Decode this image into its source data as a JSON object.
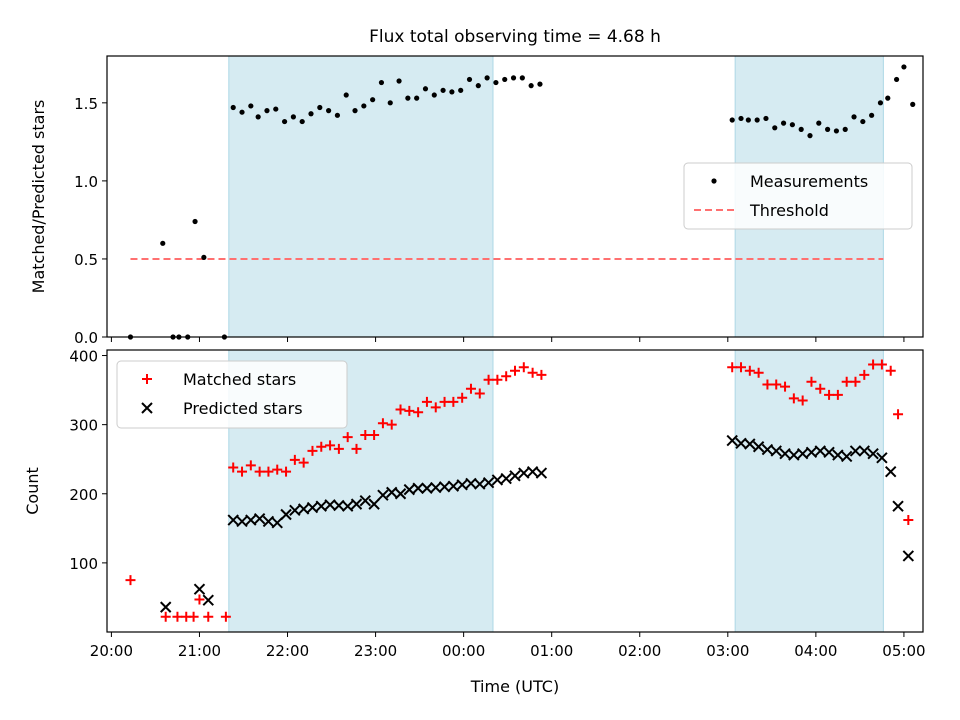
{
  "figure": {
    "title": "Flux total observing time = 4.68 h"
  },
  "chart_data": [
    {
      "type": "scatter",
      "panel": "top",
      "title": "Flux total observing time = 4.68 h",
      "xlabel": "",
      "ylabel": "Matched/Predicted stars",
      "xlim": [
        "19:57",
        "05:13"
      ],
      "ylim": [
        0,
        1.8
      ],
      "yticks": [
        0.0,
        0.5,
        1.0,
        1.5
      ],
      "ytick_labels": [
        "0.0",
        "0.5",
        "1.0",
        "1.5"
      ],
      "xticks": [
        "20:00",
        "21:00",
        "22:00",
        "23:00",
        "00:00",
        "01:00",
        "02:00",
        "03:00",
        "04:00",
        "05:00"
      ],
      "shaded_intervals": [
        {
          "start": "21:20",
          "end": "00:20",
          "color": "#add8e6"
        },
        {
          "start": "03:05",
          "end": "04:46",
          "color": "#add8e6"
        }
      ],
      "threshold": {
        "name": "Threshold",
        "value": 0.5,
        "start": "20:13",
        "end": "04:46",
        "color": "#ff7070"
      },
      "legend": {
        "position": "center-right",
        "entries": [
          "Measurements",
          "Threshold"
        ]
      },
      "series": [
        {
          "name": "Measurements",
          "marker": "dot",
          "color": "#000000",
          "points": [
            {
              "x": "20:13",
              "y": 0.0
            },
            {
              "x": "20:35",
              "y": 0.6
            },
            {
              "x": "20:42",
              "y": 0.0
            },
            {
              "x": "20:46",
              "y": 0.0
            },
            {
              "x": "20:52",
              "y": 0.0
            },
            {
              "x": "20:57",
              "y": 0.74
            },
            {
              "x": "21:03",
              "y": 0.51
            },
            {
              "x": "21:17",
              "y": 0.0
            },
            {
              "x": "21:23",
              "y": 1.47
            },
            {
              "x": "21:29",
              "y": 1.44
            },
            {
              "x": "21:35",
              "y": 1.48
            },
            {
              "x": "21:40",
              "y": 1.41
            },
            {
              "x": "21:46",
              "y": 1.45
            },
            {
              "x": "21:52",
              "y": 1.46
            },
            {
              "x": "21:58",
              "y": 1.38
            },
            {
              "x": "22:04",
              "y": 1.41
            },
            {
              "x": "22:10",
              "y": 1.38
            },
            {
              "x": "22:16",
              "y": 1.43
            },
            {
              "x": "22:22",
              "y": 1.47
            },
            {
              "x": "22:28",
              "y": 1.45
            },
            {
              "x": "22:34",
              "y": 1.42
            },
            {
              "x": "22:40",
              "y": 1.55
            },
            {
              "x": "22:46",
              "y": 1.45
            },
            {
              "x": "22:52",
              "y": 1.48
            },
            {
              "x": "22:58",
              "y": 1.52
            },
            {
              "x": "23:04",
              "y": 1.63
            },
            {
              "x": "23:10",
              "y": 1.5
            },
            {
              "x": "23:16",
              "y": 1.64
            },
            {
              "x": "23:22",
              "y": 1.53
            },
            {
              "x": "23:28",
              "y": 1.53
            },
            {
              "x": "23:34",
              "y": 1.59
            },
            {
              "x": "23:40",
              "y": 1.55
            },
            {
              "x": "23:46",
              "y": 1.58
            },
            {
              "x": "23:52",
              "y": 1.57
            },
            {
              "x": "23:58",
              "y": 1.58
            },
            {
              "x": "00:04",
              "y": 1.65
            },
            {
              "x": "00:10",
              "y": 1.61
            },
            {
              "x": "00:16",
              "y": 1.66
            },
            {
              "x": "00:22",
              "y": 1.63
            },
            {
              "x": "00:28",
              "y": 1.65
            },
            {
              "x": "00:34",
              "y": 1.66
            },
            {
              "x": "00:40",
              "y": 1.66
            },
            {
              "x": "00:46",
              "y": 1.61
            },
            {
              "x": "00:52",
              "y": 1.62
            },
            {
              "x": "03:03",
              "y": 1.39
            },
            {
              "x": "03:09",
              "y": 1.4
            },
            {
              "x": "03:14",
              "y": 1.39
            },
            {
              "x": "03:20",
              "y": 1.39
            },
            {
              "x": "03:26",
              "y": 1.4
            },
            {
              "x": "03:32",
              "y": 1.34
            },
            {
              "x": "03:38",
              "y": 1.37
            },
            {
              "x": "03:44",
              "y": 1.36
            },
            {
              "x": "03:50",
              "y": 1.33
            },
            {
              "x": "03:56",
              "y": 1.29
            },
            {
              "x": "04:02",
              "y": 1.37
            },
            {
              "x": "04:08",
              "y": 1.33
            },
            {
              "x": "04:14",
              "y": 1.32
            },
            {
              "x": "04:20",
              "y": 1.33
            },
            {
              "x": "04:26",
              "y": 1.41
            },
            {
              "x": "04:32",
              "y": 1.38
            },
            {
              "x": "04:38",
              "y": 1.42
            },
            {
              "x": "04:44",
              "y": 1.5
            },
            {
              "x": "04:49",
              "y": 1.53
            },
            {
              "x": "04:55",
              "y": 1.65
            },
            {
              "x": "05:00",
              "y": 1.73
            },
            {
              "x": "05:06",
              "y": 1.49
            }
          ]
        }
      ]
    },
    {
      "type": "scatter",
      "panel": "bottom",
      "title": "",
      "xlabel": "Time (UTC)",
      "ylabel": "Count",
      "xlim": [
        "19:57",
        "05:13"
      ],
      "ylim": [
        0,
        408
      ],
      "yticks": [
        100,
        200,
        300,
        400
      ],
      "ytick_labels": [
        "100",
        "200",
        "300",
        "400"
      ],
      "xticks": [
        "20:00",
        "21:00",
        "22:00",
        "23:00",
        "00:00",
        "01:00",
        "02:00",
        "03:00",
        "04:00",
        "05:00"
      ],
      "shaded_intervals": [
        {
          "start": "21:20",
          "end": "00:20",
          "color": "#add8e6"
        },
        {
          "start": "03:05",
          "end": "04:46",
          "color": "#add8e6"
        }
      ],
      "legend": {
        "position": "top-left",
        "entries": [
          "Matched stars",
          "Predicted stars"
        ]
      },
      "series": [
        {
          "name": "Matched stars",
          "marker": "plus",
          "color": "#ff0000",
          "points": [
            {
              "x": "20:13",
              "y": 75
            },
            {
              "x": "20:37",
              "y": 22
            },
            {
              "x": "20:45",
              "y": 22
            },
            {
              "x": "20:51",
              "y": 22
            },
            {
              "x": "20:56",
              "y": 22
            },
            {
              "x": "21:00",
              "y": 47
            },
            {
              "x": "21:06",
              "y": 22
            },
            {
              "x": "21:18",
              "y": 22
            },
            {
              "x": "21:23",
              "y": 238
            },
            {
              "x": "21:29",
              "y": 232
            },
            {
              "x": "21:35",
              "y": 241
            },
            {
              "x": "21:41",
              "y": 232
            },
            {
              "x": "21:47",
              "y": 232
            },
            {
              "x": "21:53",
              "y": 235
            },
            {
              "x": "21:59",
              "y": 232
            },
            {
              "x": "22:05",
              "y": 249
            },
            {
              "x": "22:11",
              "y": 245
            },
            {
              "x": "22:17",
              "y": 262
            },
            {
              "x": "22:23",
              "y": 268
            },
            {
              "x": "22:29",
              "y": 270
            },
            {
              "x": "22:35",
              "y": 265
            },
            {
              "x": "22:41",
              "y": 282
            },
            {
              "x": "22:47",
              "y": 265
            },
            {
              "x": "22:53",
              "y": 285
            },
            {
              "x": "22:59",
              "y": 285
            },
            {
              "x": "23:05",
              "y": 302
            },
            {
              "x": "23:11",
              "y": 300
            },
            {
              "x": "23:17",
              "y": 322
            },
            {
              "x": "23:23",
              "y": 320
            },
            {
              "x": "23:29",
              "y": 318
            },
            {
              "x": "23:35",
              "y": 333
            },
            {
              "x": "23:41",
              "y": 325
            },
            {
              "x": "23:47",
              "y": 333
            },
            {
              "x": "23:53",
              "y": 333
            },
            {
              "x": "23:59",
              "y": 339
            },
            {
              "x": "00:05",
              "y": 352
            },
            {
              "x": "00:11",
              "y": 345
            },
            {
              "x": "00:17",
              "y": 365
            },
            {
              "x": "00:23",
              "y": 365
            },
            {
              "x": "00:29",
              "y": 370
            },
            {
              "x": "00:35",
              "y": 378
            },
            {
              "x": "00:41",
              "y": 383
            },
            {
              "x": "00:47",
              "y": 375
            },
            {
              "x": "00:53",
              "y": 372
            },
            {
              "x": "03:03",
              "y": 383
            },
            {
              "x": "03:09",
              "y": 383
            },
            {
              "x": "03:15",
              "y": 378
            },
            {
              "x": "03:21",
              "y": 375
            },
            {
              "x": "03:27",
              "y": 358
            },
            {
              "x": "03:33",
              "y": 358
            },
            {
              "x": "03:39",
              "y": 355
            },
            {
              "x": "03:45",
              "y": 338
            },
            {
              "x": "03:51",
              "y": 335
            },
            {
              "x": "03:57",
              "y": 362
            },
            {
              "x": "04:03",
              "y": 352
            },
            {
              "x": "04:09",
              "y": 343
            },
            {
              "x": "04:15",
              "y": 343
            },
            {
              "x": "04:21",
              "y": 362
            },
            {
              "x": "04:27",
              "y": 362
            },
            {
              "x": "04:33",
              "y": 372
            },
            {
              "x": "04:39",
              "y": 387
            },
            {
              "x": "04:45",
              "y": 387
            },
            {
              "x": "04:51",
              "y": 378
            },
            {
              "x": "04:56",
              "y": 315
            },
            {
              "x": "05:03",
              "y": 162
            }
          ]
        },
        {
          "name": "Predicted stars",
          "marker": "x",
          "color": "#000000",
          "points": [
            {
              "x": "20:37",
              "y": 36
            },
            {
              "x": "21:00",
              "y": 62
            },
            {
              "x": "21:06",
              "y": 46
            },
            {
              "x": "21:23",
              "y": 162
            },
            {
              "x": "21:29",
              "y": 160
            },
            {
              "x": "21:35",
              "y": 162
            },
            {
              "x": "21:41",
              "y": 164
            },
            {
              "x": "21:47",
              "y": 160
            },
            {
              "x": "21:53",
              "y": 158
            },
            {
              "x": "21:59",
              "y": 170
            },
            {
              "x": "22:05",
              "y": 176
            },
            {
              "x": "22:11",
              "y": 178
            },
            {
              "x": "22:17",
              "y": 180
            },
            {
              "x": "22:23",
              "y": 182
            },
            {
              "x": "22:29",
              "y": 184
            },
            {
              "x": "22:35",
              "y": 183
            },
            {
              "x": "22:41",
              "y": 182
            },
            {
              "x": "22:47",
              "y": 185
            },
            {
              "x": "22:53",
              "y": 190
            },
            {
              "x": "22:59",
              "y": 185
            },
            {
              "x": "23:05",
              "y": 198
            },
            {
              "x": "23:11",
              "y": 202
            },
            {
              "x": "23:17",
              "y": 200
            },
            {
              "x": "23:23",
              "y": 206
            },
            {
              "x": "23:29",
              "y": 208
            },
            {
              "x": "23:35",
              "y": 208
            },
            {
              "x": "23:41",
              "y": 209
            },
            {
              "x": "23:47",
              "y": 210
            },
            {
              "x": "23:53",
              "y": 211
            },
            {
              "x": "23:59",
              "y": 213
            },
            {
              "x": "00:05",
              "y": 215
            },
            {
              "x": "00:11",
              "y": 214
            },
            {
              "x": "00:17",
              "y": 216
            },
            {
              "x": "00:23",
              "y": 220
            },
            {
              "x": "00:29",
              "y": 222
            },
            {
              "x": "00:35",
              "y": 226
            },
            {
              "x": "00:41",
              "y": 230
            },
            {
              "x": "00:47",
              "y": 232
            },
            {
              "x": "00:53",
              "y": 230
            },
            {
              "x": "03:03",
              "y": 277
            },
            {
              "x": "03:09",
              "y": 273
            },
            {
              "x": "03:15",
              "y": 272
            },
            {
              "x": "03:21",
              "y": 268
            },
            {
              "x": "03:27",
              "y": 264
            },
            {
              "x": "03:33",
              "y": 262
            },
            {
              "x": "03:39",
              "y": 258
            },
            {
              "x": "03:45",
              "y": 256
            },
            {
              "x": "03:51",
              "y": 258
            },
            {
              "x": "03:57",
              "y": 260
            },
            {
              "x": "04:03",
              "y": 262
            },
            {
              "x": "04:09",
              "y": 260
            },
            {
              "x": "04:15",
              "y": 256
            },
            {
              "x": "04:21",
              "y": 254
            },
            {
              "x": "04:27",
              "y": 262
            },
            {
              "x": "04:33",
              "y": 262
            },
            {
              "x": "04:39",
              "y": 258
            },
            {
              "x": "04:45",
              "y": 252
            },
            {
              "x": "04:51",
              "y": 232
            },
            {
              "x": "04:56",
              "y": 182
            },
            {
              "x": "05:03",
              "y": 110
            }
          ]
        }
      ]
    }
  ]
}
